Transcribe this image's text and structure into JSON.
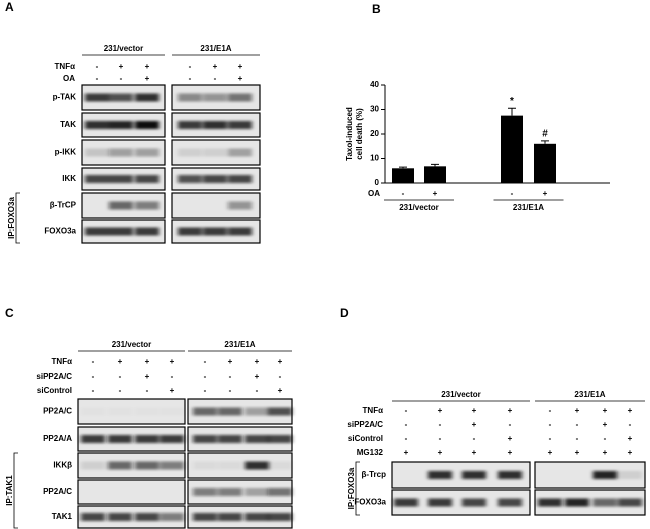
{
  "panel_a": {
    "label": "A",
    "groups": [
      "231/vector",
      "231/E1A"
    ],
    "conditions": [
      {
        "name": "TNFα",
        "marks": [
          "-",
          "+",
          "+",
          "-",
          "+",
          "+"
        ]
      },
      {
        "name": "OA",
        "marks": [
          "-",
          "-",
          "+",
          "-",
          "-",
          "+"
        ]
      }
    ],
    "blots": [
      "p-TAK",
      "TAK",
      "p-IKK",
      "IKK",
      "β-TrCP",
      "FOXO3a"
    ],
    "ip_label": "IP:FOXO3a"
  },
  "chart_data": {
    "type": "bar",
    "panel_label": "B",
    "y_label": [
      "Taxol-induced",
      "cell death (%)"
    ],
    "row_label": "OA",
    "categories": [
      "-",
      "+",
      "-",
      "+"
    ],
    "groups": [
      "231/vector",
      "231/E1A"
    ],
    "values": [
      6,
      6.8,
      27.5,
      16
    ],
    "errors": [
      0.5,
      0.8,
      3,
      1.2
    ],
    "annotations": [
      null,
      null,
      "*",
      "#"
    ],
    "color": "#000000",
    "ylim": [
      0,
      40
    ],
    "yticks": [
      0,
      10,
      20,
      30,
      40
    ]
  },
  "panel_c": {
    "label": "C",
    "groups": [
      "231/vector",
      "231/E1A"
    ],
    "conditions": [
      {
        "name": "TNFα",
        "marks": [
          "-",
          "+",
          "+",
          "+",
          "-",
          "+",
          "+",
          "+"
        ]
      },
      {
        "name": "siPP2A/C",
        "marks": [
          "-",
          "-",
          "+",
          "-",
          "-",
          "-",
          "+",
          "-"
        ]
      },
      {
        "name": "siControl",
        "marks": [
          "-",
          "-",
          "-",
          "+",
          "-",
          "-",
          "-",
          "+"
        ]
      }
    ],
    "blots": [
      "PP2A/C",
      "PP2A/A",
      "IKKβ",
      "PP2A/C",
      "TAK1"
    ],
    "ip_label": "IP:TAK1"
  },
  "panel_d": {
    "label": "D",
    "groups": [
      "231/vector",
      "231/E1A"
    ],
    "conditions": [
      {
        "name": "TNFα",
        "marks": [
          "-",
          "+",
          "+",
          "+",
          "-",
          "+",
          "+",
          "+"
        ]
      },
      {
        "name": "siPP2A/C",
        "marks": [
          "-",
          "-",
          "+",
          "-",
          "-",
          "-",
          "+",
          "-"
        ]
      },
      {
        "name": "siControl",
        "marks": [
          "-",
          "-",
          "-",
          "+",
          "-",
          "-",
          "-",
          "+"
        ]
      },
      {
        "name": "MG132",
        "marks": [
          "+",
          "+",
          "+",
          "+",
          "+",
          "+",
          "+",
          "+"
        ]
      }
    ],
    "blots": [
      "β-Trcp",
      "FOXO3a"
    ],
    "ip_label": "IP:FOXO3a"
  }
}
